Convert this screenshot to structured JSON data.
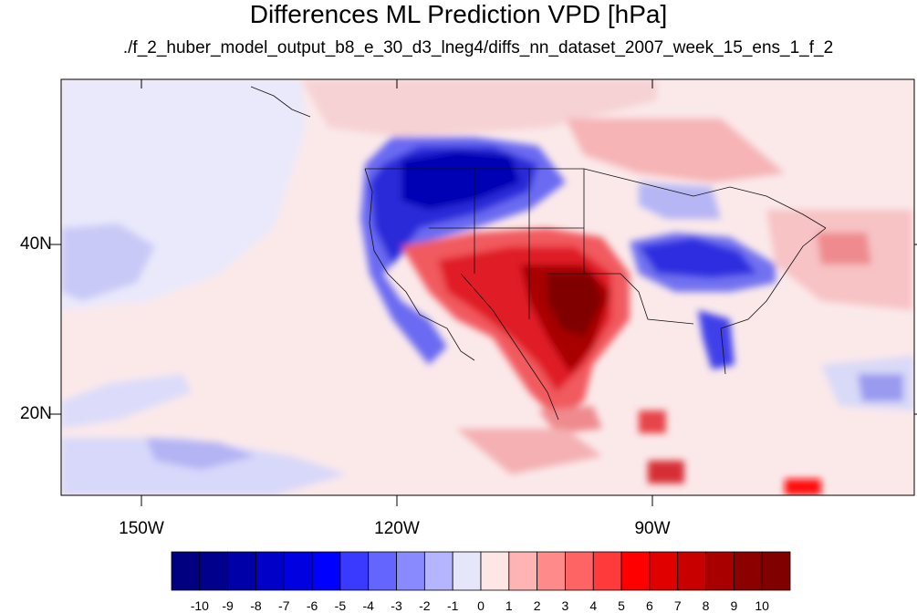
{
  "title": "Differences ML Prediction VPD [hPa]",
  "subtitle": "./f_2_huber_model_output_b8_e_30_d3_lneg4/diffs_nn_dataset_2007_week_15_ens_1_f_2",
  "map": {
    "lat_labels": [
      "40N",
      "20N"
    ],
    "lon_labels": [
      "150W",
      "120W",
      "90W"
    ],
    "colorbar": {
      "labels": [
        "-10",
        "-9",
        "-8",
        "-7",
        "-6",
        "-5",
        "-4",
        "-3",
        "-2",
        "-1",
        "0",
        "1",
        "2",
        "3",
        "4",
        "5",
        "6",
        "7",
        "8",
        "9",
        "10"
      ],
      "colors": [
        "#000080",
        "#00008c",
        "#0000a8",
        "#0000c8",
        "#0000e0",
        "#0000ff",
        "#3a3aff",
        "#6464ff",
        "#8a8aff",
        "#b4b4ff",
        "#e6e6fa",
        "#ffe6e6",
        "#ffb4b4",
        "#ff8a8a",
        "#ff6464",
        "#ff3a3a",
        "#ff0000",
        "#e00000",
        "#c80000",
        "#a80000",
        "#8c0000",
        "#800000"
      ]
    }
  }
}
